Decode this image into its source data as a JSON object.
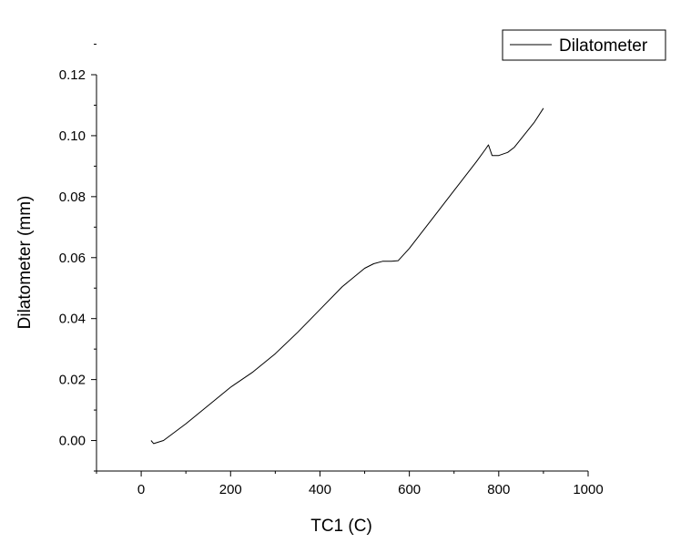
{
  "chart_data": {
    "type": "line",
    "title": "",
    "xlabel": "TC1 (C)",
    "ylabel": "Dilatometer (mm)",
    "xlim": [
      -100,
      1000
    ],
    "ylim": [
      -0.01,
      0.12
    ],
    "x_ticks": [
      0,
      200,
      400,
      600,
      800,
      1000
    ],
    "x_tick_labels": [
      "0",
      "200",
      "400",
      "600",
      "800",
      "1000"
    ],
    "y_ticks": [
      0.0,
      0.02,
      0.04,
      0.06,
      0.08,
      0.1,
      0.12
    ],
    "y_tick_labels": [
      "0.00",
      "0.02",
      "0.04",
      "0.06",
      "0.08",
      "0.10",
      "0.12"
    ],
    "grid": false,
    "legend": {
      "position": "top-right",
      "entries": [
        "Dilatometer"
      ]
    },
    "series": [
      {
        "name": "Dilatometer",
        "color": "#000000",
        "x": [
          22,
          28,
          50,
          100,
          150,
          200,
          250,
          300,
          350,
          400,
          450,
          500,
          520,
          540,
          560,
          575,
          600,
          650,
          700,
          750,
          770,
          777,
          785,
          800,
          820,
          835,
          850,
          880,
          900
        ],
        "y": [
          0.0,
          -0.001,
          0.0,
          0.0055,
          0.0115,
          0.0175,
          0.0225,
          0.0285,
          0.0355,
          0.043,
          0.0505,
          0.0565,
          0.058,
          0.0588,
          0.0588,
          0.059,
          0.063,
          0.0725,
          0.082,
          0.0915,
          0.0955,
          0.097,
          0.0935,
          0.0935,
          0.0945,
          0.0962,
          0.099,
          0.1045,
          0.109
        ]
      }
    ]
  }
}
